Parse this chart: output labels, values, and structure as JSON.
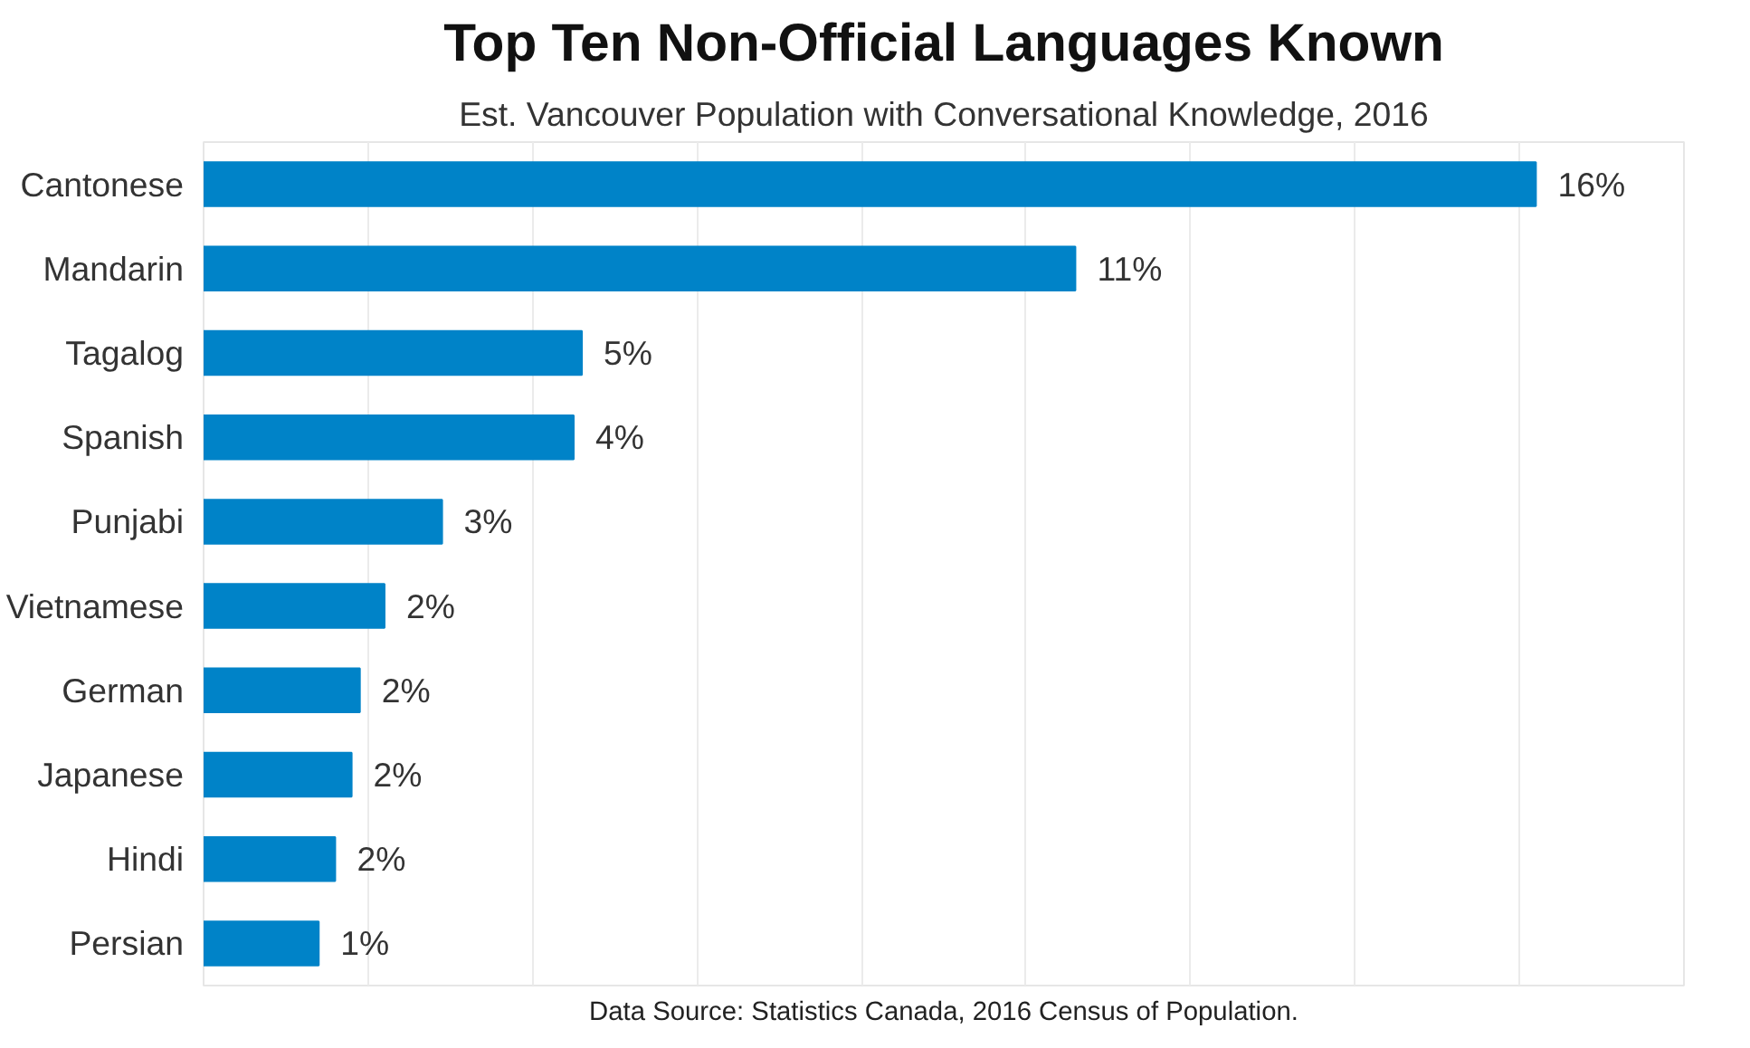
{
  "chart_data": {
    "type": "bar",
    "orientation": "horizontal",
    "title": "Top Ten Non-Official Languages Known",
    "subtitle": "Est. Vancouver Population with Conversational Knowledge, 2016",
    "categories": [
      "Cantonese",
      "Mandarin",
      "Tagalog",
      "Spanish",
      "Punjabi",
      "Vietnamese",
      "German",
      "Japanese",
      "Hindi",
      "Persian"
    ],
    "values": [
      16.2,
      10.6,
      4.6,
      4.5,
      2.9,
      2.2,
      1.9,
      1.8,
      1.6,
      1.4
    ],
    "value_labels": [
      "16%",
      "11%",
      "5%",
      "4%",
      "3%",
      "2%",
      "2%",
      "2%",
      "2%",
      "1%"
    ],
    "color": "#0083c8",
    "xlim": [
      0,
      18
    ],
    "xticks": [
      {
        "value": 0,
        "label": null
      },
      {
        "value": 2,
        "label": null
      },
      {
        "value": 4,
        "label": null
      },
      {
        "value": 6,
        "label": null
      },
      {
        "value": 8,
        "label": null
      },
      {
        "value": 10,
        "label": null
      },
      {
        "value": 12,
        "label": null
      },
      {
        "value": 14,
        "label": null
      },
      {
        "value": 16,
        "label": null
      },
      {
        "value": 18,
        "label": null
      }
    ],
    "tick_labels": "y",
    "grid": "x",
    "annotations": [
      "Data Source: Statistics Canada, 2016 Census of Population."
    ]
  }
}
